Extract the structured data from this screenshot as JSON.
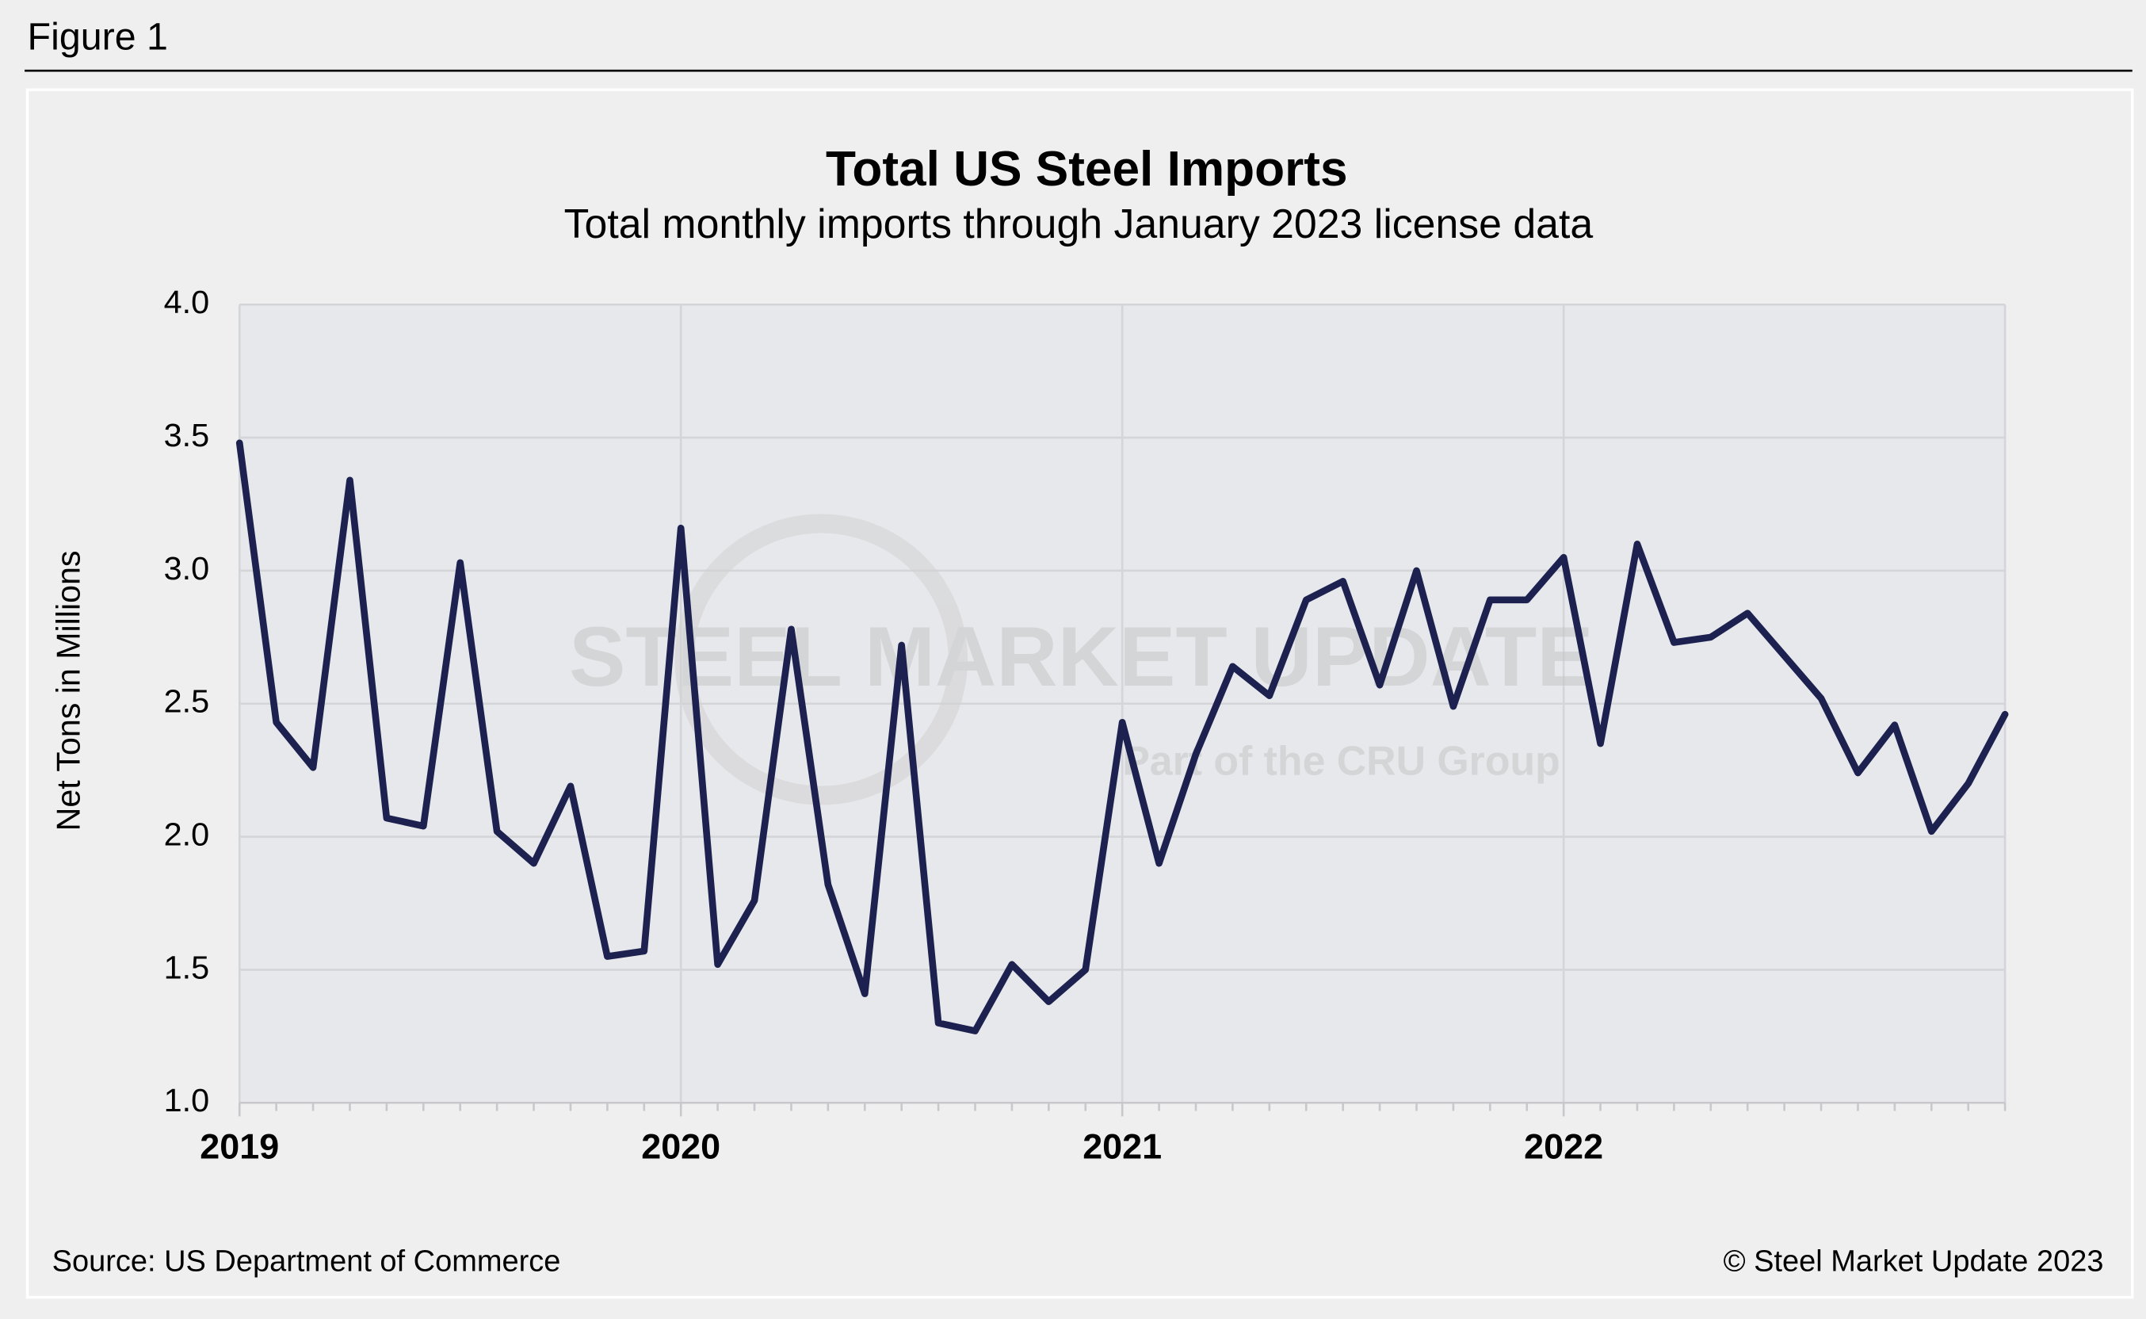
{
  "figure_label": "Figure 1",
  "chart_data": {
    "type": "line",
    "title": "Total US Steel Imports",
    "subtitle": "Total monthly imports through January 2023 license data",
    "y_label": "Net Tons in Millions",
    "source": "Source: US Department of Commerce",
    "copyright": "© Steel Market Update 2023",
    "watermark": "STEEL MARKET UPDATE",
    "watermark_sub": "Part of the CRU Group",
    "categories": [
      "2019",
      null,
      null,
      null,
      null,
      null,
      null,
      null,
      null,
      null,
      null,
      null,
      "2020",
      null,
      null,
      null,
      null,
      null,
      null,
      null,
      null,
      null,
      null,
      null,
      "2021",
      null,
      null,
      null,
      null,
      null,
      null,
      null,
      null,
      null,
      null,
      null,
      "2022",
      null,
      null,
      null,
      null,
      null,
      null,
      null,
      null,
      null,
      null,
      null,
      null
    ],
    "series": [
      {
        "name": "Total US Steel Imports",
        "color": "#1c2150",
        "values": [
          3.48,
          2.43,
          2.26,
          3.34,
          2.07,
          2.04,
          3.03,
          2.02,
          1.9,
          2.19,
          1.55,
          1.57,
          3.16,
          1.52,
          1.76,
          2.78,
          1.82,
          1.41,
          2.72,
          1.3,
          1.27,
          1.52,
          1.38,
          1.5,
          2.43,
          1.9,
          2.31,
          2.64,
          2.53,
          2.89,
          2.96,
          2.57,
          3.0,
          2.49,
          2.89,
          2.89,
          3.05,
          2.35,
          3.1,
          2.73,
          2.75,
          2.84,
          2.68,
          2.52,
          2.24,
          2.42,
          2.02,
          2.2,
          2.46
        ]
      }
    ],
    "ylim": [
      1.0,
      4.0
    ],
    "yticks": [
      {
        "value": 1.0,
        "label": "1.0"
      },
      {
        "value": 1.5,
        "label": "1.5"
      },
      {
        "value": 2.0,
        "label": "2.0"
      },
      {
        "value": 2.5,
        "label": "2.5"
      },
      {
        "value": 3.0,
        "label": "3.0"
      },
      {
        "value": 3.5,
        "label": "3.5"
      },
      {
        "value": 4.0,
        "label": "4.0"
      }
    ],
    "grid": true
  }
}
